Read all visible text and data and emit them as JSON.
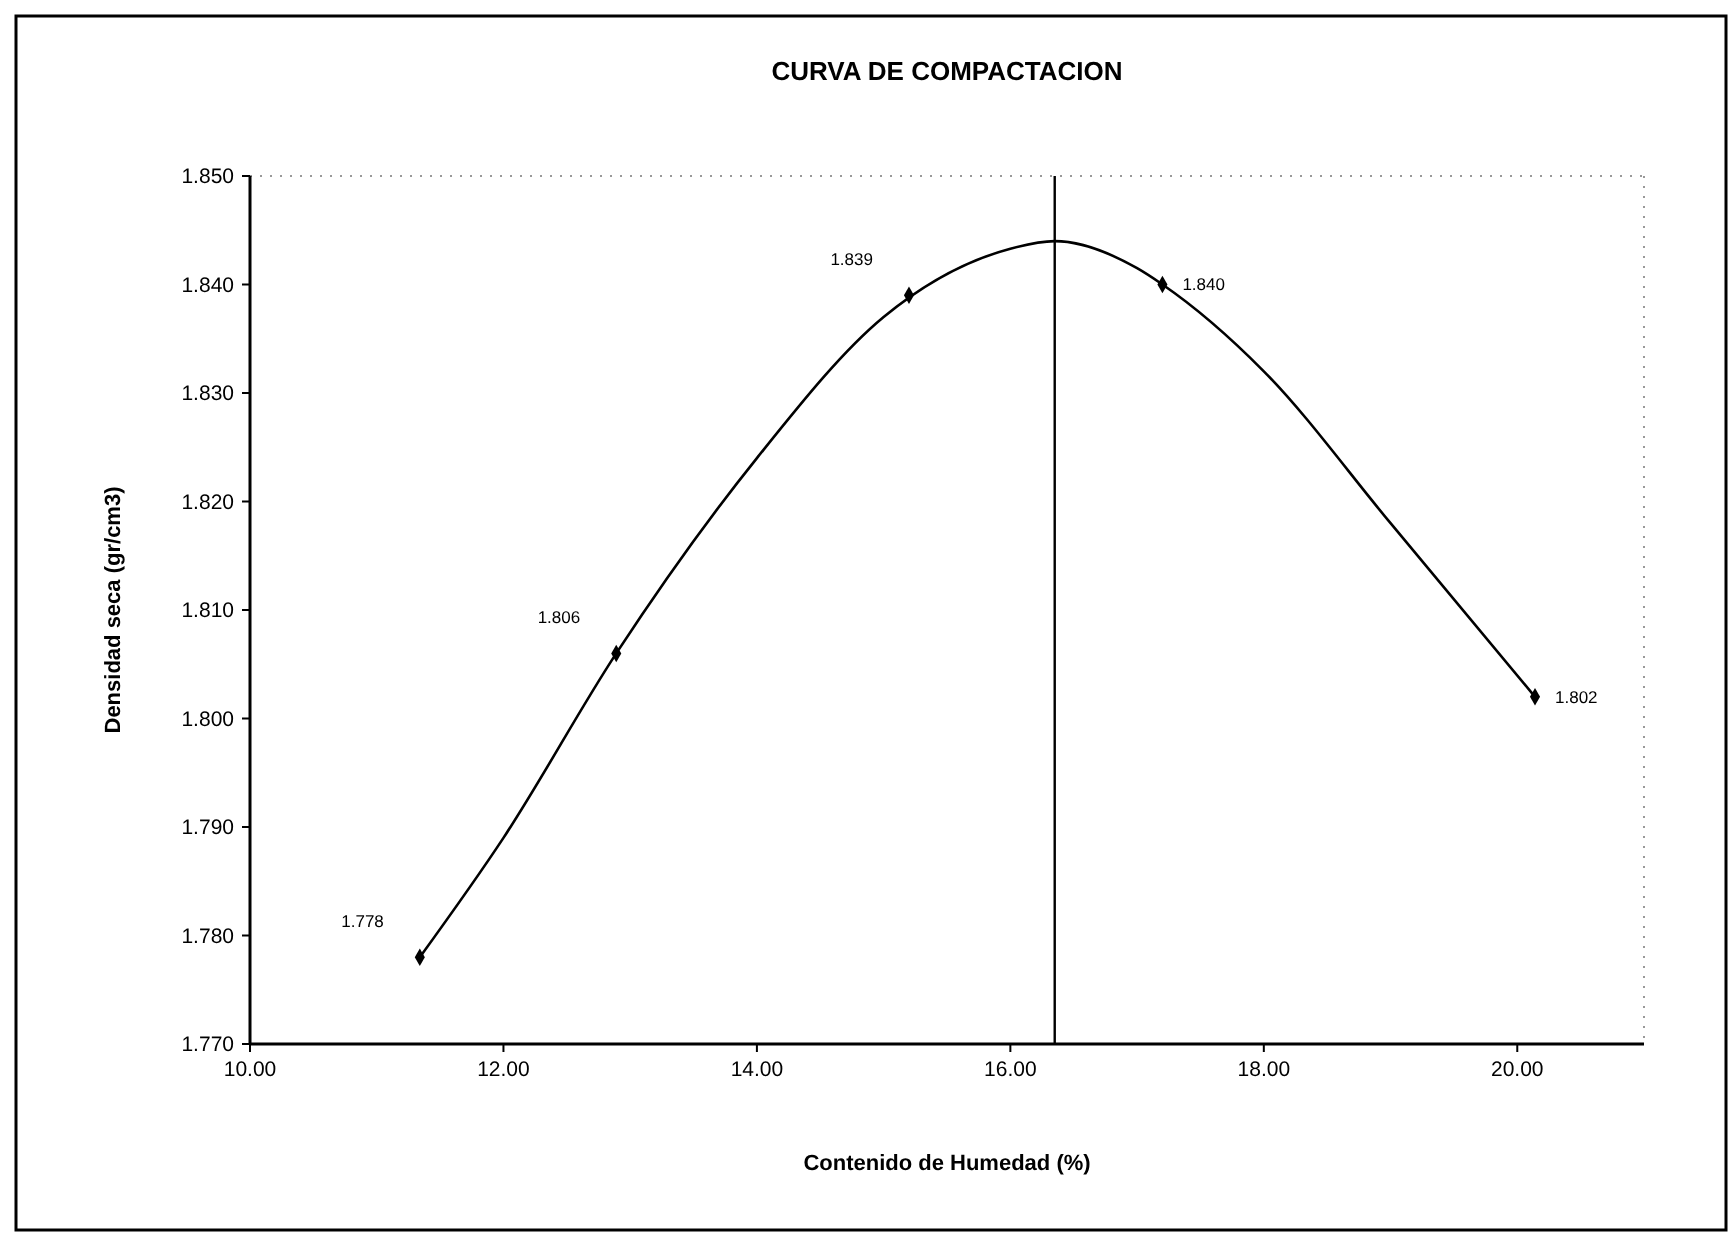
{
  "chart_data": {
    "type": "scatter",
    "title": "CURVA DE COMPACTACION",
    "xlabel": "Contenido de Humedad (%)",
    "ylabel": "Densidad seca (gr/cm3)",
    "xlim": [
      10,
      21
    ],
    "ylim": [
      1.77,
      1.85
    ],
    "xticks": [
      {
        "value": 10,
        "label": "10.00"
      },
      {
        "value": 12,
        "label": "12.00"
      },
      {
        "value": 14,
        "label": "14.00"
      },
      {
        "value": 16,
        "label": "16.00"
      },
      {
        "value": 18,
        "label": "18.00"
      },
      {
        "value": 20,
        "label": "20.00"
      }
    ],
    "yticks": [
      {
        "value": 1.77,
        "label": "1.770"
      },
      {
        "value": 1.78,
        "label": "1.780"
      },
      {
        "value": 1.79,
        "label": "1.790"
      },
      {
        "value": 1.8,
        "label": "1.800"
      },
      {
        "value": 1.81,
        "label": "1.810"
      },
      {
        "value": 1.82,
        "label": "1.820"
      },
      {
        "value": 1.83,
        "label": "1.830"
      },
      {
        "value": 1.84,
        "label": "1.840"
      },
      {
        "value": 1.85,
        "label": "1.850"
      }
    ],
    "series": [
      {
        "type": "line",
        "color": "#000000",
        "marker": "none",
        "line_style": "solid",
        "x": [
          11.34,
          12,
          12.89,
          14,
          15,
          16,
          16.35,
          17,
          17.2,
          18,
          19,
          20.14
        ],
        "values": [
          1.778,
          1.789,
          1.806,
          1.824,
          1.837,
          1.8433,
          1.844,
          1.8415,
          1.84,
          1.832,
          1.818,
          1.802
        ]
      },
      {
        "color": "#000000",
        "marker": "diamond",
        "x": [
          11.34,
          12.89,
          15.2,
          17.2,
          20.14
        ],
        "values": [
          1.778,
          1.806,
          1.839,
          1.84,
          1.802
        ],
        "value_labels": [
          "1.778",
          "1.806",
          "1.839",
          "1.840",
          "1.802"
        ]
      }
    ],
    "ref_lines": [
      {
        "axis": "x",
        "value": 16.35,
        "color": "#000000"
      }
    ],
    "grid": false
  }
}
